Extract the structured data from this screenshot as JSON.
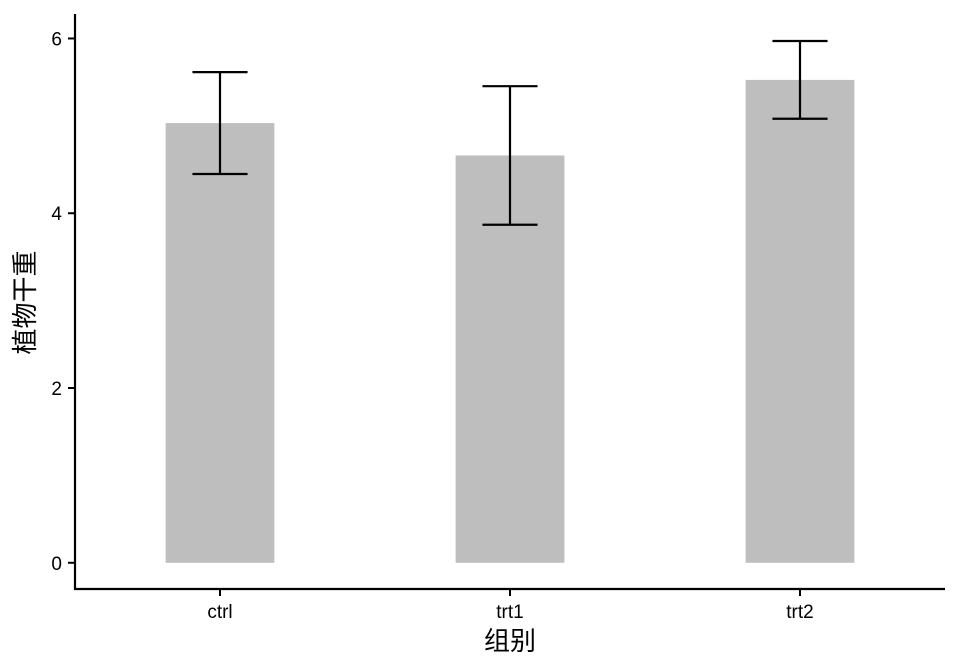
{
  "chart_data": {
    "type": "bar",
    "categories": [
      "ctrl",
      "trt1",
      "trt2"
    ],
    "values": [
      5.032,
      4.661,
      5.526
    ],
    "error_low": [
      4.449,
      3.868,
      5.081
    ],
    "error_high": [
      5.615,
      5.454,
      5.971
    ],
    "xlabel": "组别",
    "ylabel": "植物干重",
    "ylim": [
      -0.3,
      6.28
    ],
    "yticks": [
      0,
      2,
      4,
      6
    ],
    "bar_color": "#bebebe",
    "error_color": "#000000",
    "grid": false,
    "legend": "none"
  }
}
